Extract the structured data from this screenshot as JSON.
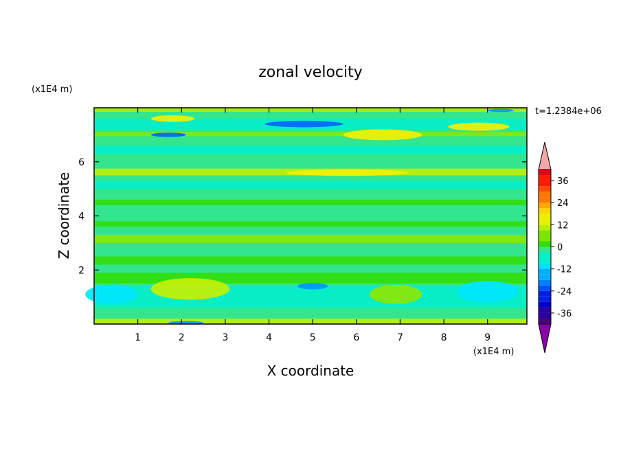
{
  "chart_data": {
    "type": "heatmap",
    "title": "zonal velocity",
    "xlabel": "X coordinate",
    "ylabel": "Z coordinate",
    "x_unit": "(x1E4 m)",
    "y_unit": "(x1E4 m)",
    "time_label": "t=1.2384e+06",
    "xlim": [
      0,
      9.9
    ],
    "ylim": [
      0,
      8
    ],
    "x_ticks": [
      "1",
      "2",
      "3",
      "4",
      "5",
      "6",
      "7",
      "8",
      "9"
    ],
    "y_ticks": [
      "2",
      "4",
      "6"
    ],
    "colorbar": {
      "range": [
        -42,
        42
      ],
      "step": 3,
      "ticks": [
        "36",
        "24",
        "12",
        "0",
        "-12",
        "-24",
        "-36"
      ],
      "extend": "both"
    },
    "grid": false
  }
}
